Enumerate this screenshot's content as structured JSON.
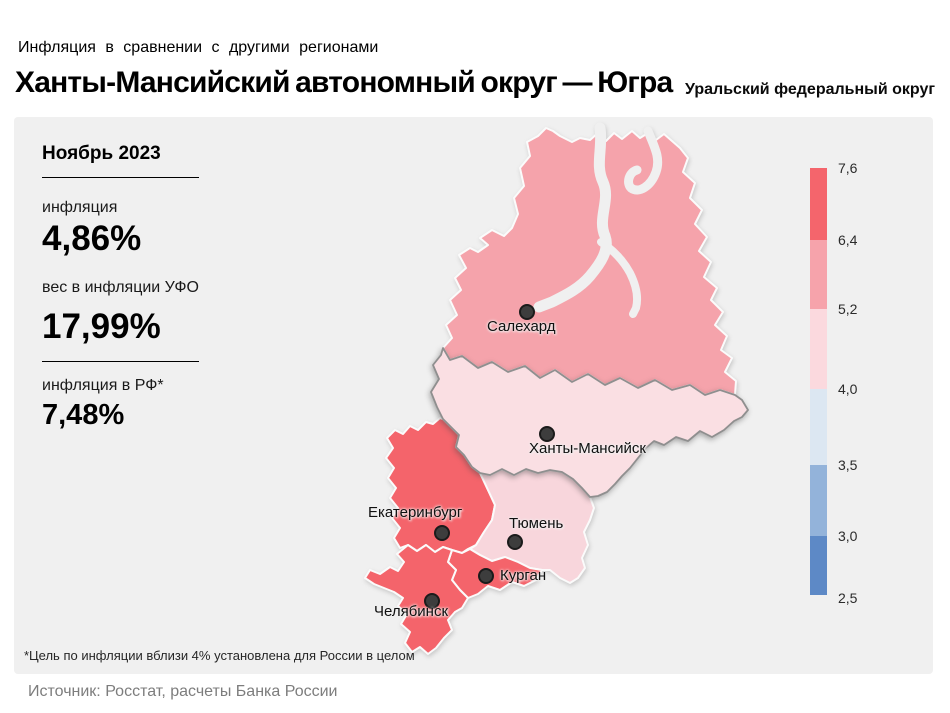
{
  "header": {
    "kicker": "Инфляция в сравнении с другими регионами",
    "title": "Ханты-Мансийский автономный округ — Югра",
    "district": "Уральский федеральный округ"
  },
  "stats": {
    "period": "Ноябрь 2023",
    "inflation_label": "инфляция",
    "inflation_value": "4,86%",
    "weight_label": "вес в инфляции УФО",
    "weight_value": "17,99%",
    "rf_label": "инфляция в РФ*",
    "rf_value": "7,48%"
  },
  "map": {
    "cities": [
      {
        "name": "Салехард"
      },
      {
        "name": "Ханты-Мансийск"
      },
      {
        "name": "Екатеринбург"
      },
      {
        "name": "Тюмень"
      },
      {
        "name": "Курган"
      },
      {
        "name": "Челябинск"
      }
    ],
    "regions": {
      "yamalo-nenets": {
        "color": "#f5a3ab"
      },
      "khanty-mansi": {
        "color": "#fadfe3"
      },
      "sverdlovsk": {
        "color": "#f4646b"
      },
      "tyumen": {
        "color": "#f8d6dc"
      },
      "kurgan": {
        "color": "#f4646b"
      },
      "chelyabinsk": {
        "color": "#f4646b"
      }
    }
  },
  "legend": {
    "tick_labels": [
      "7,6",
      "6,4",
      "5,2",
      "4,0",
      "3,5",
      "3,0",
      "2,5"
    ],
    "segment_colors": [
      "#f4656c",
      "#f6a3ab",
      "#fbd9de",
      "#dce7f2",
      "#93b3da",
      "#5d89c6"
    ]
  },
  "footnote": "*Цель по инфляции вблизи 4% установлена для России в целом",
  "source": "Источник: Росстат, расчеты Банка России",
  "chart_data": {
    "type": "heatmap",
    "subtype": "choropleth-map",
    "title": "Ханты-Мансийский автономный округ — Югра",
    "scope": "Уральский федеральный округ",
    "period": "Ноябрь 2023",
    "metric": "инфляция, %",
    "highlighted_region": {
      "name": "Ханты-Мансийский автономный округ — Югра",
      "inflation_pct": 4.86,
      "weight_in_ufo_inflation_pct": 17.99
    },
    "russia_inflation_pct": 7.48,
    "scale": {
      "ticks_top_to_bottom": [
        7.6,
        6.4,
        5.2,
        4.0,
        3.5,
        3.0,
        2.5
      ],
      "colors_top_to_bottom": [
        "#f4656c",
        "#f6a3ab",
        "#fbd9de",
        "#dce7f2",
        "#93b3da",
        "#5d89c6"
      ],
      "legend_position": "right"
    },
    "regions_by_city_marker": [
      {
        "city": "Салехард",
        "color": "#f5a3ab",
        "value_bin": "5,2–6,4"
      },
      {
        "city": "Ханты-Мансийск",
        "color": "#fadfe3",
        "value_bin": "4,0–5,2",
        "value": 4.86
      },
      {
        "city": "Екатеринбург",
        "color": "#f4646b",
        "value_bin": "6,4–7,6"
      },
      {
        "city": "Тюмень",
        "color": "#f8d6dc",
        "value_bin": "4,0–5,2"
      },
      {
        "city": "Курган",
        "color": "#f4646b",
        "value_bin": "6,4–7,6"
      },
      {
        "city": "Челябинск",
        "color": "#f4646b",
        "value_bin": "6,4–7,6"
      }
    ]
  }
}
